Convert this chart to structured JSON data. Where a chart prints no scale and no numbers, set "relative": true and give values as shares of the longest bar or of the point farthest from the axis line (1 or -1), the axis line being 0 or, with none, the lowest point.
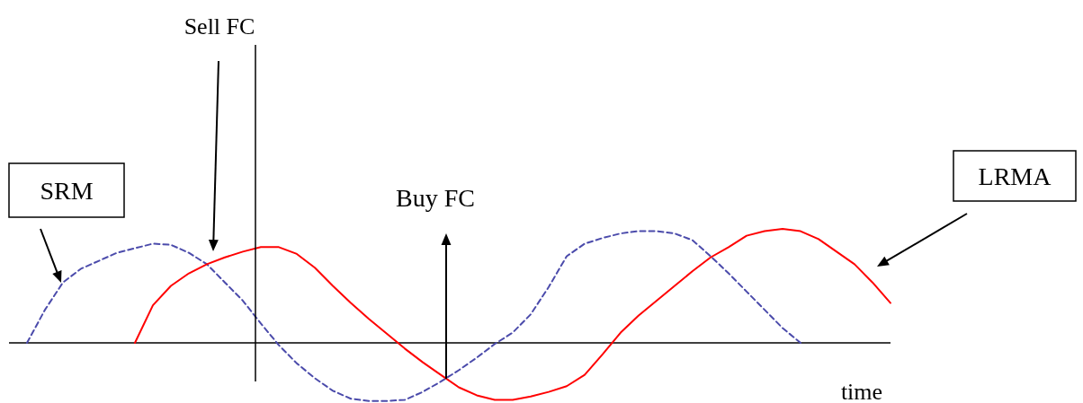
{
  "chart_data": {
    "type": "line",
    "relative": true,
    "xlabel": "time",
    "categories": [
      null,
      null,
      null,
      null,
      null,
      null,
      null,
      null,
      null,
      null,
      null,
      null,
      null,
      null,
      null,
      null,
      null,
      null,
      null,
      null,
      null,
      null,
      null,
      null,
      null,
      null,
      null,
      null,
      null,
      null,
      null,
      null,
      null,
      null,
      null,
      null,
      null,
      null,
      null,
      null,
      null,
      null,
      null,
      null,
      null,
      null,
      null,
      null,
      null
    ],
    "series": [
      {
        "name": "SRM",
        "color": "#4b4bab",
        "line_style": "dashed",
        "values": [
          0,
          0.29,
          0.53,
          0.65,
          0.72,
          0.79,
          0.83,
          0.87,
          0.86,
          0.79,
          0.69,
          0.53,
          0.37,
          0.17,
          -0.02,
          -0.18,
          -0.31,
          -0.42,
          -0.49,
          -0.51,
          -0.51,
          -0.5,
          -0.43,
          -0.34,
          -0.24,
          -0.13,
          -0.01,
          0.09,
          0.25,
          0.49,
          0.76,
          0.87,
          0.92,
          0.96,
          0.98,
          0.98,
          0.96,
          0.9,
          0.76,
          0.61,
          0.45,
          0.29,
          0.13,
          0,
          null,
          null,
          null,
          null,
          null
        ]
      },
      {
        "name": "LRMA",
        "color": "#ff0000",
        "line_style": "solid",
        "values": [
          null,
          null,
          null,
          null,
          null,
          null,
          0,
          0.33,
          0.5,
          0.61,
          0.69,
          0.75,
          0.8,
          0.84,
          0.84,
          0.78,
          0.66,
          0.5,
          0.35,
          0.21,
          0.08,
          -0.05,
          -0.17,
          -0.28,
          -0.39,
          -0.46,
          -0.5,
          -0.5,
          -0.47,
          -0.43,
          -0.38,
          -0.28,
          -0.1,
          0.09,
          0.24,
          0.37,
          0.5,
          0.63,
          0.75,
          0.84,
          0.94,
          0.98,
          1,
          0.98,
          0.91,
          0.8,
          0.69,
          0.53,
          0.35
        ]
      }
    ],
    "annotations": [
      "Sell FC",
      "Buy FC"
    ]
  }
}
